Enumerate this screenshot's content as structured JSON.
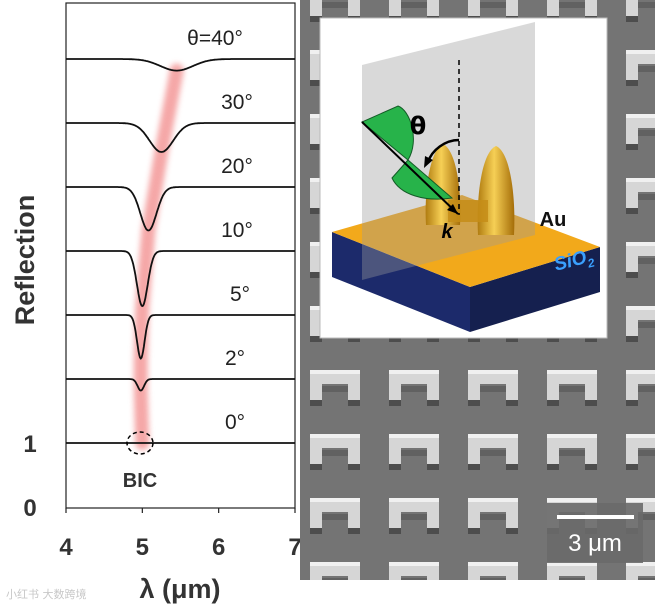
{
  "chart_data": {
    "type": "line",
    "title": "",
    "xlabel": "λ (μm)",
    "ylabel": "Reflection",
    "xlim": [
      4,
      7
    ],
    "x_ticks": [
      "4",
      "5",
      "6",
      "7"
    ],
    "y_ticks": [
      "1",
      "0"
    ],
    "offset_per_curve": 1,
    "series": [
      {
        "name": "0°",
        "dip_x": 5.0,
        "dip_depth": 0.0,
        "dip_width": 0.06
      },
      {
        "name": "2°",
        "dip_x": 4.98,
        "dip_depth": 0.2,
        "dip_width": 0.06
      },
      {
        "name": "5°",
        "dip_x": 4.98,
        "dip_depth": 0.75,
        "dip_width": 0.07
      },
      {
        "name": "10°",
        "dip_x": 5.0,
        "dip_depth": 0.95,
        "dip_width": 0.1
      },
      {
        "name": "20°",
        "dip_x": 5.08,
        "dip_depth": 0.75,
        "dip_width": 0.15
      },
      {
        "name": "30°",
        "dip_x": 5.25,
        "dip_depth": 0.5,
        "dip_width": 0.22
      },
      {
        "name": "θ=40°",
        "dip_x": 5.45,
        "dip_depth": 0.2,
        "dip_width": 0.3
      }
    ],
    "annotations": [
      "BIC"
    ],
    "highlight_color": "#f28a8a"
  },
  "inset": {
    "metal_label": "Au",
    "substrate_label": "SiO",
    "substrate_subscript": "2",
    "angle_label": "θ",
    "wavevector_label": "k",
    "colors": {
      "gold": "#f2a91b",
      "substrate": "#1c2a6b",
      "field": "#27b34a"
    }
  },
  "micrograph": {
    "scale_bar_label": "3 μm"
  },
  "watermark": "小红书 大数跨境"
}
